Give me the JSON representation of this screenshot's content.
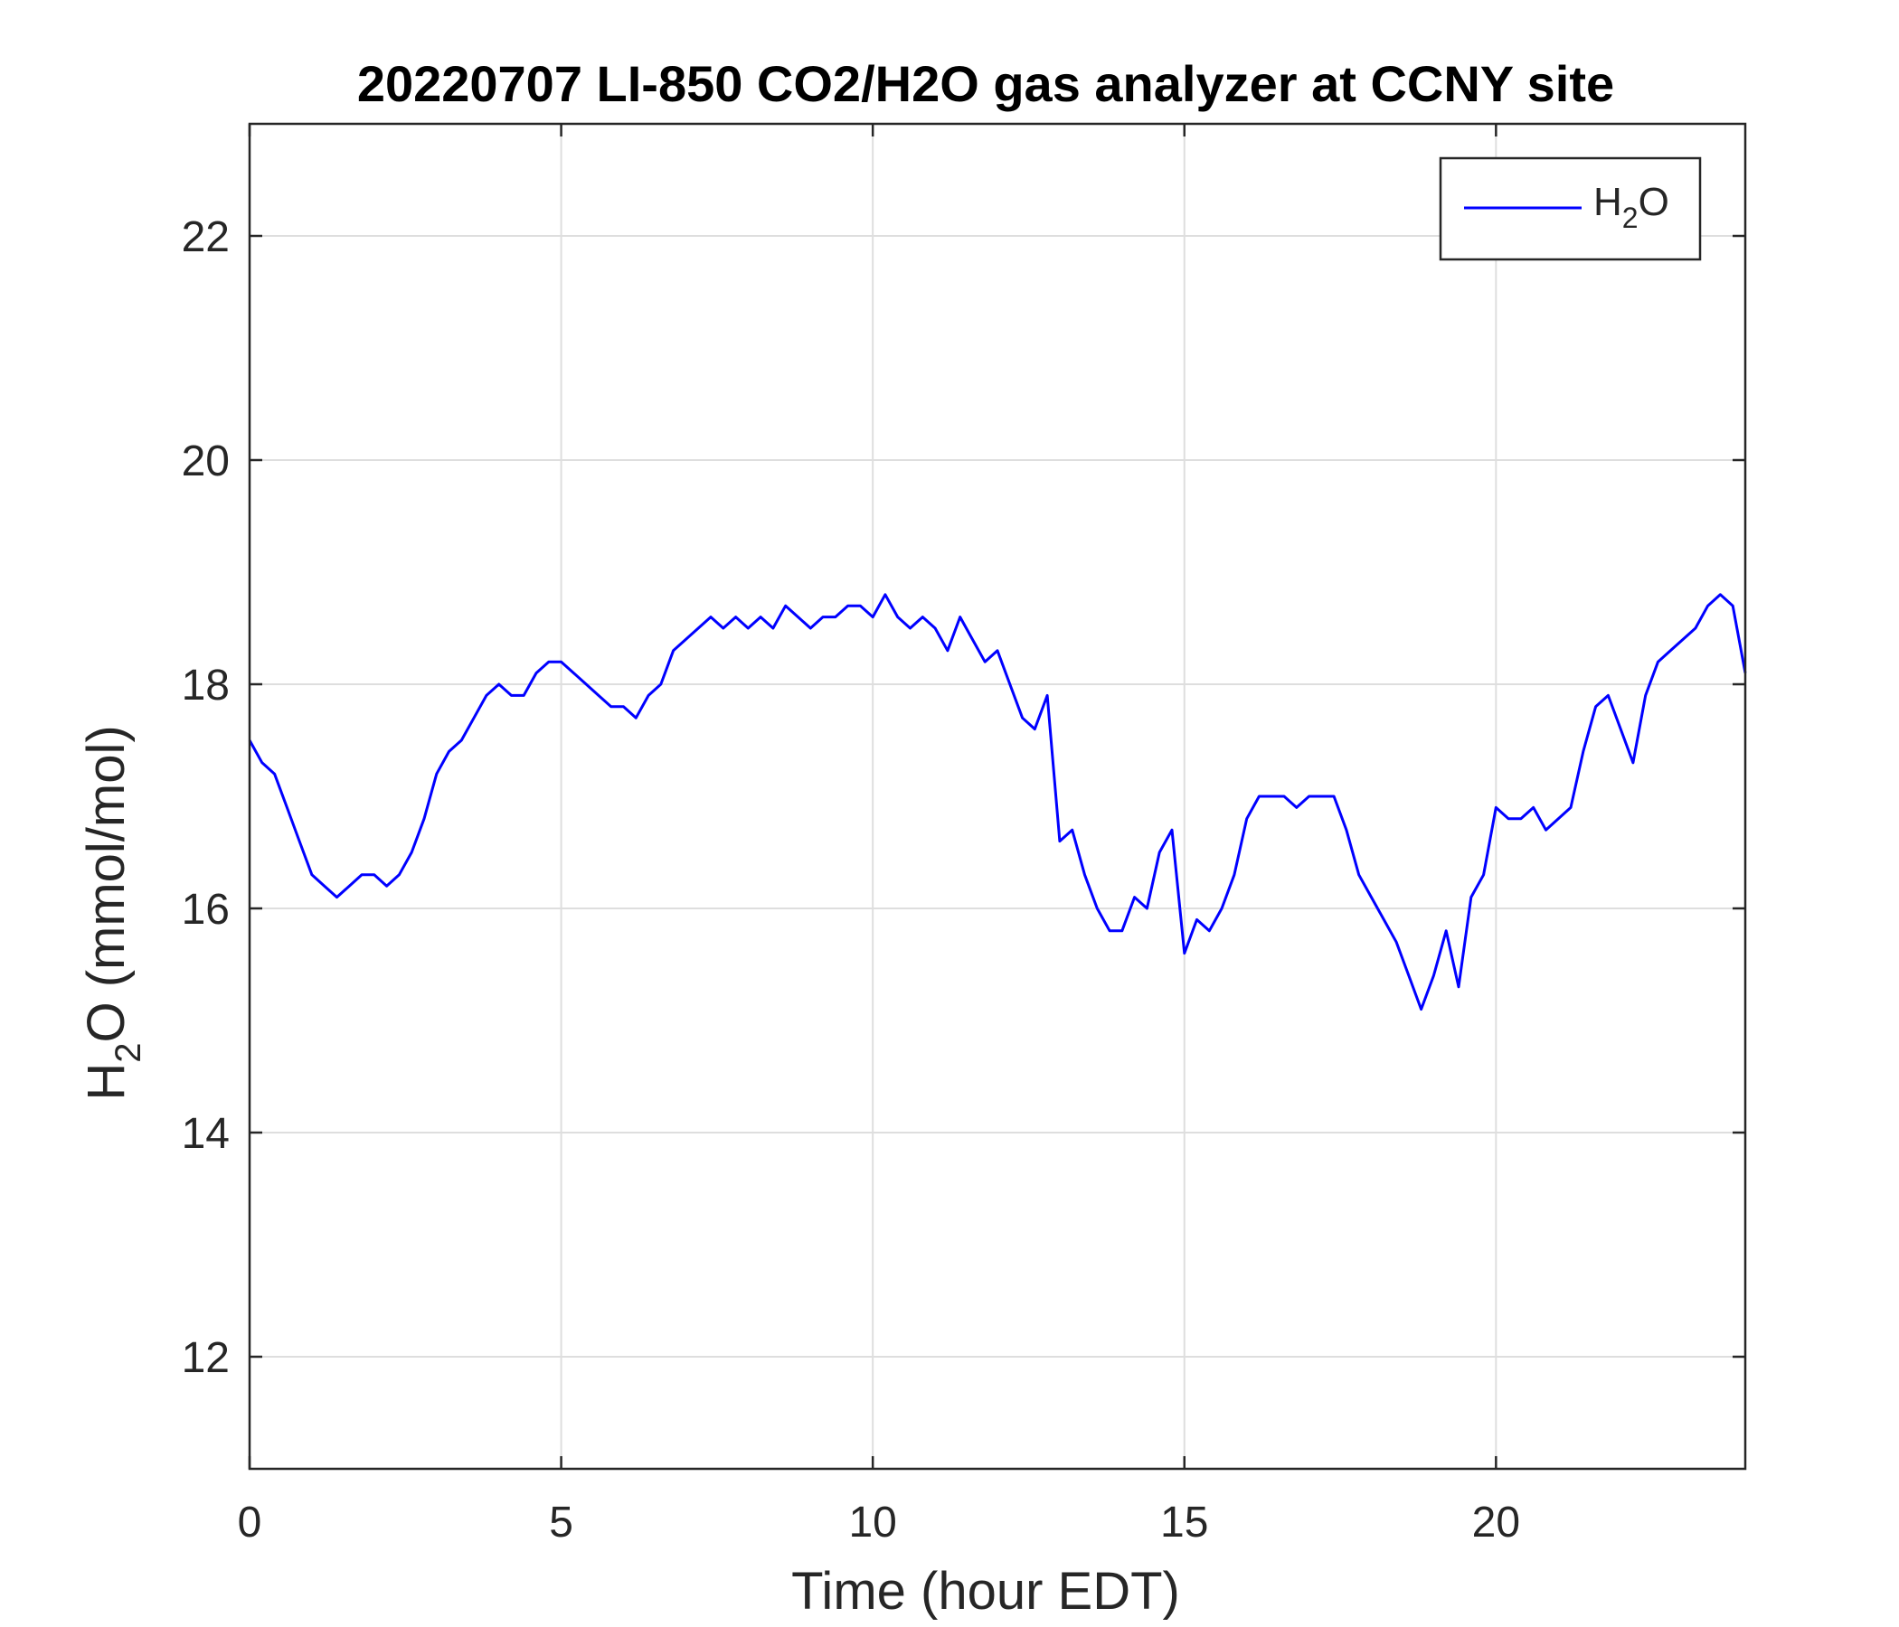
{
  "chart_data": {
    "type": "line",
    "title": "20220707 LI-850 CO2/H2O gas analyzer at CCNY site",
    "xlabel": "Time (hour EDT)",
    "ylabel": {
      "main": "H",
      "sub": "2",
      "rest": "O (mmol/mol)"
    },
    "xlim": [
      0,
      24
    ],
    "ylim": [
      11,
      23
    ],
    "xticks": [
      0,
      5,
      10,
      15,
      20
    ],
    "yticks": [
      12,
      14,
      16,
      18,
      20,
      22
    ],
    "grid": true,
    "legend_position": "top-right",
    "series": [
      {
        "name": {
          "main": "H",
          "sub": "2",
          "rest": "O"
        },
        "color": "#0000ff",
        "x": [
          0,
          0.2,
          0.4,
          0.6,
          0.8,
          1.0,
          1.2,
          1.4,
          1.6,
          1.8,
          2.0,
          2.2,
          2.4,
          2.6,
          2.8,
          3.0,
          3.2,
          3.4,
          3.6,
          3.8,
          4.0,
          4.2,
          4.4,
          4.6,
          4.8,
          5.0,
          5.2,
          5.4,
          5.6,
          5.8,
          6.0,
          6.2,
          6.4,
          6.6,
          6.8,
          7.0,
          7.2,
          7.4,
          7.6,
          7.8,
          8.0,
          8.2,
          8.4,
          8.6,
          8.8,
          9.0,
          9.2,
          9.4,
          9.6,
          9.8,
          10.0,
          10.2,
          10.4,
          10.6,
          10.8,
          11.0,
          11.2,
          11.4,
          11.6,
          11.8,
          12.0,
          12.2,
          12.4,
          12.6,
          12.8,
          13.0,
          13.2,
          13.4,
          13.6,
          13.8,
          14.0,
          14.2,
          14.4,
          14.6,
          14.8,
          15.0,
          15.2,
          15.4,
          15.6,
          15.8,
          16.0,
          16.2,
          16.4,
          16.6,
          16.8,
          17.0,
          17.2,
          17.4,
          17.6,
          17.8,
          18.0,
          18.2,
          18.4,
          18.6,
          18.8,
          19.0,
          19.2,
          19.4,
          19.6,
          19.8,
          20.0,
          20.2,
          20.4,
          20.6,
          20.8,
          21.0,
          21.2,
          21.4,
          21.6,
          21.8,
          22.0,
          22.2,
          22.4,
          22.6,
          22.8,
          23.0,
          23.2,
          23.4,
          23.6,
          23.8,
          24.0
        ],
        "y": [
          17.5,
          17.3,
          17.2,
          16.9,
          16.6,
          16.3,
          16.2,
          16.1,
          16.2,
          16.3,
          16.3,
          16.2,
          16.3,
          16.5,
          16.8,
          17.2,
          17.4,
          17.5,
          17.7,
          17.9,
          18.0,
          17.9,
          17.9,
          18.1,
          18.2,
          18.2,
          18.1,
          18.0,
          17.9,
          17.8,
          17.8,
          17.7,
          17.9,
          18.0,
          18.3,
          18.4,
          18.5,
          18.6,
          18.5,
          18.6,
          18.5,
          18.6,
          18.5,
          18.7,
          18.6,
          18.5,
          18.6,
          18.6,
          18.7,
          18.7,
          18.6,
          18.8,
          18.6,
          18.5,
          18.6,
          18.5,
          18.3,
          18.6,
          18.4,
          18.2,
          18.3,
          18.0,
          17.7,
          17.6,
          17.9,
          16.6,
          16.7,
          16.3,
          16.0,
          15.8,
          15.8,
          16.1,
          16.0,
          16.5,
          16.7,
          15.6,
          15.9,
          15.8,
          16.0,
          16.3,
          16.8,
          17.0,
          17.0,
          17.0,
          16.9,
          17.0,
          17.0,
          17.0,
          16.7,
          16.3,
          16.1,
          15.9,
          15.7,
          15.4,
          15.1,
          15.4,
          15.8,
          15.3,
          16.1,
          16.3,
          16.9,
          16.8,
          16.8,
          16.9,
          16.7,
          16.8,
          16.9,
          17.4,
          17.8,
          17.9,
          17.6,
          17.3,
          17.9,
          18.2,
          18.3,
          18.4,
          18.5,
          18.7,
          18.8,
          18.7,
          18.1
        ]
      }
    ]
  }
}
